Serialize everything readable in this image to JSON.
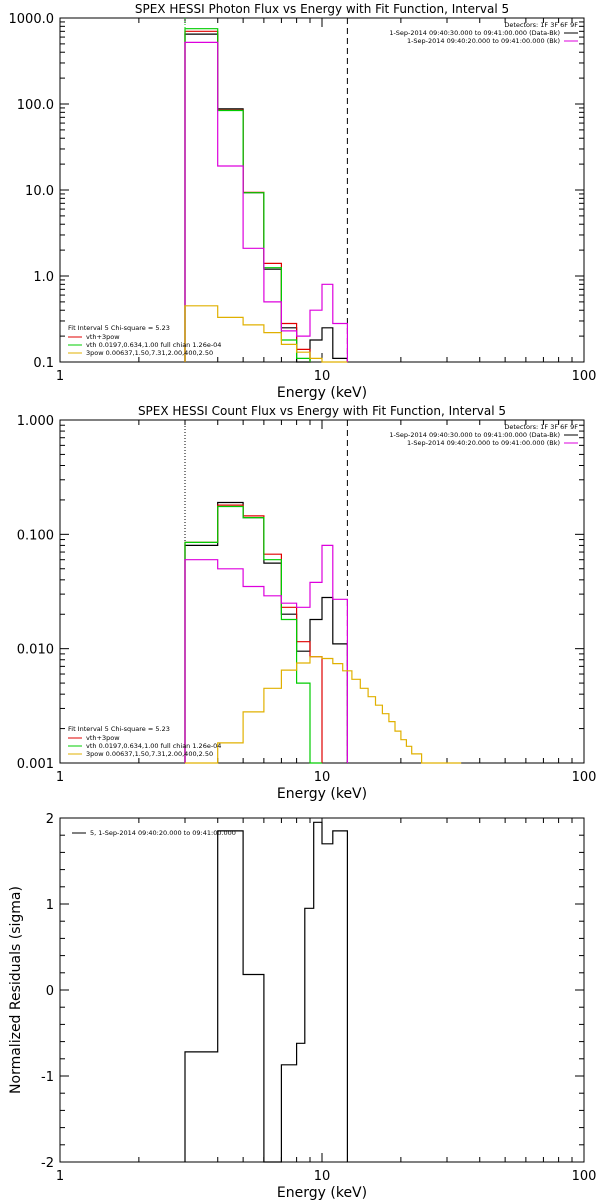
{
  "colors": {
    "black": "#000000",
    "red": "#e00000",
    "green": "#00cc00",
    "magenta": "#dd00dd",
    "yellow": "#e0b000",
    "background": "#ffffff"
  },
  "chart_data": [
    {
      "type": "line",
      "title": "SPEX HESSI Photon Flux vs Energy with Fit Function, Interval 5",
      "xlabel": "Energy (keV)",
      "ylabel": "",
      "xscale": "log",
      "yscale": "log",
      "xlim": [
        1,
        100
      ],
      "ylim": [
        0.1,
        1000
      ],
      "x_ticklabels": [
        "1",
        "10",
        "100"
      ],
      "y_ticklabels": [
        "0.1",
        "1.0",
        "10.0",
        "100.0",
        "1000.0"
      ],
      "vlines": [
        {
          "x": 3.0,
          "style": "dotted",
          "color": "#00cc00"
        },
        {
          "x": 12.5,
          "style": "dashed",
          "color": "#000000"
        }
      ],
      "legend_topright": {
        "placement": "top-right",
        "header": "Detectors: 1F 3F 6F 9F",
        "lines": [
          {
            "text": "1-Sep-2014 09:40:30.000 to 09:41:00.000 (Data-Bk)",
            "color": "#000000"
          },
          {
            "text": "1-Sep-2014 09:40:20.000 to 09:41:00.000 (Bk)",
            "color": "#dd00dd"
          }
        ]
      },
      "legend_bottomleft": {
        "placement": "bottom-left",
        "header": "Fit Interval 5   Chi-square = 5.23",
        "lines": [
          {
            "text": "vth+3pow",
            "color": "#e00000"
          },
          {
            "text": "vth 0.0197,0.634,1.00   full chian 1.26e-04",
            "color": "#00cc00"
          },
          {
            "text": "3pow 0.00637,1.50,7.31,2.00,400,2.50",
            "color": "#e0b000"
          }
        ]
      },
      "edges": [
        3,
        4,
        5,
        6,
        7,
        8,
        9,
        10,
        11,
        12.5
      ],
      "series": [
        {
          "name": "Data-Bk",
          "color": "#000000",
          "values": [
            650,
            88,
            9.3,
            1.2,
            0.25,
            0.1,
            0.18,
            0.25,
            0.11
          ]
        },
        {
          "name": "vth+3pow",
          "color": "#e00000",
          "values": [
            700,
            85,
            9.4,
            1.4,
            0.28,
            0.14,
            null,
            null,
            null
          ]
        },
        {
          "name": "vth",
          "color": "#00cc00",
          "values": [
            750,
            84,
            9.3,
            1.25,
            0.18,
            0.11,
            null,
            null,
            null
          ]
        },
        {
          "name": "Bk",
          "color": "#dd00dd",
          "values": [
            520,
            19,
            2.1,
            0.5,
            0.23,
            0.2,
            0.4,
            0.8,
            0.28
          ]
        },
        {
          "name": "3pow",
          "color": "#e0b000",
          "values": [
            0.45,
            0.33,
            0.27,
            0.22,
            0.16,
            0.13,
            0.11,
            0.1,
            0.1
          ]
        }
      ]
    },
    {
      "type": "line",
      "title": "SPEX HESSI Count Flux vs Energy with Fit Function, Interval 5",
      "xlabel": "Energy (keV)",
      "ylabel": "",
      "xscale": "log",
      "yscale": "log",
      "xlim": [
        1,
        100
      ],
      "ylim": [
        0.001,
        1
      ],
      "x_ticklabels": [
        "1",
        "10",
        "100"
      ],
      "y_ticklabels": [
        "0.001",
        "0.010",
        "0.100",
        "1.000"
      ],
      "vlines": [
        {
          "x": 3.0,
          "style": "dotted",
          "color": "#000000"
        },
        {
          "x": 12.5,
          "style": "dashed",
          "color": "#000000"
        }
      ],
      "legend_topright": {
        "placement": "top-right",
        "header": "Detectors: 1F 3F 6F 9F",
        "lines": [
          {
            "text": "1-Sep-2014 09:40:30.000 to 09:41:00.000 (Data-Bk)",
            "color": "#000000"
          },
          {
            "text": "1-Sep-2014 09:40:20.000 to 09:41:00.000 (Bk)",
            "color": "#dd00dd"
          }
        ]
      },
      "legend_bottomleft": {
        "placement": "bottom-left",
        "header": "Fit Interval 5   Chi-square = 5.23",
        "lines": [
          {
            "text": "vth+3pow",
            "color": "#e00000"
          },
          {
            "text": "vth 0.0197,0.634,1.00   full chian 1.26e-04",
            "color": "#00cc00"
          },
          {
            "text": "3pow 0.00637,1.50,7.31,2.00,400,2.50",
            "color": "#e0b000"
          }
        ]
      },
      "edges": [
        3,
        4,
        5,
        6,
        7,
        8,
        9,
        10,
        11,
        12.5
      ],
      "series": [
        {
          "name": "Data-Bk",
          "color": "#000000",
          "values": [
            0.08,
            0.19,
            0.14,
            0.056,
            0.02,
            0.0095,
            0.018,
            0.028,
            0.011
          ]
        },
        {
          "name": "vth+3pow",
          "color": "#e00000",
          "values": [
            0.085,
            0.18,
            0.145,
            0.067,
            0.023,
            0.0115,
            0.0085,
            null,
            null
          ]
        },
        {
          "name": "vth",
          "color": "#00cc00",
          "values": [
            0.085,
            0.175,
            0.14,
            0.06,
            0.018,
            0.005,
            0.001,
            null,
            null
          ]
        },
        {
          "name": "Bk",
          "color": "#dd00dd",
          "values": [
            0.06,
            0.05,
            0.035,
            0.029,
            0.025,
            0.023,
            0.038,
            0.08,
            0.027
          ]
        },
        {
          "name": "3pow",
          "color": "#e0b000",
          "edges": [
            3,
            4,
            5,
            6,
            7,
            8,
            9,
            10,
            11,
            12,
            13,
            14,
            15,
            16,
            17,
            18,
            19,
            20,
            21,
            22,
            24,
            26,
            28,
            30,
            32,
            34
          ],
          "values": [
            0.001,
            0.0015,
            0.0028,
            0.0045,
            0.0065,
            0.0075,
            0.0085,
            0.0082,
            0.0074,
            0.0064,
            0.0054,
            0.0045,
            0.0038,
            0.0032,
            0.0027,
            0.0023,
            0.0019,
            0.0016,
            0.0014,
            0.0012,
            0.001,
            0.001,
            0.001,
            0.001,
            0.001
          ]
        }
      ]
    },
    {
      "type": "line",
      "title": "",
      "xlabel": "Energy (keV)",
      "ylabel": "Normalized Residuals (sigma)",
      "xscale": "log",
      "yscale": "linear",
      "xlim": [
        1,
        100
      ],
      "ylim": [
        -2,
        2
      ],
      "x_ticklabels": [
        "1",
        "10",
        "100"
      ],
      "y_ticklabels": [
        "-2",
        "-1",
        "0",
        "1",
        "2"
      ],
      "legend": {
        "placement": "top-left",
        "text": "5,  1-Sep-2014 09:40:20.000 to 09:41:00.000",
        "color": "#000000"
      },
      "edges": [
        3,
        4,
        5,
        6,
        7,
        8,
        8.6,
        9.3,
        10,
        11,
        12.5
      ],
      "series": [
        {
          "name": "5",
          "color": "#000000",
          "values": [
            -0.72,
            1.85,
            0.18,
            -2.1,
            -0.87,
            -0.62,
            0.95,
            1.95,
            1.7,
            1.85
          ]
        }
      ]
    }
  ]
}
